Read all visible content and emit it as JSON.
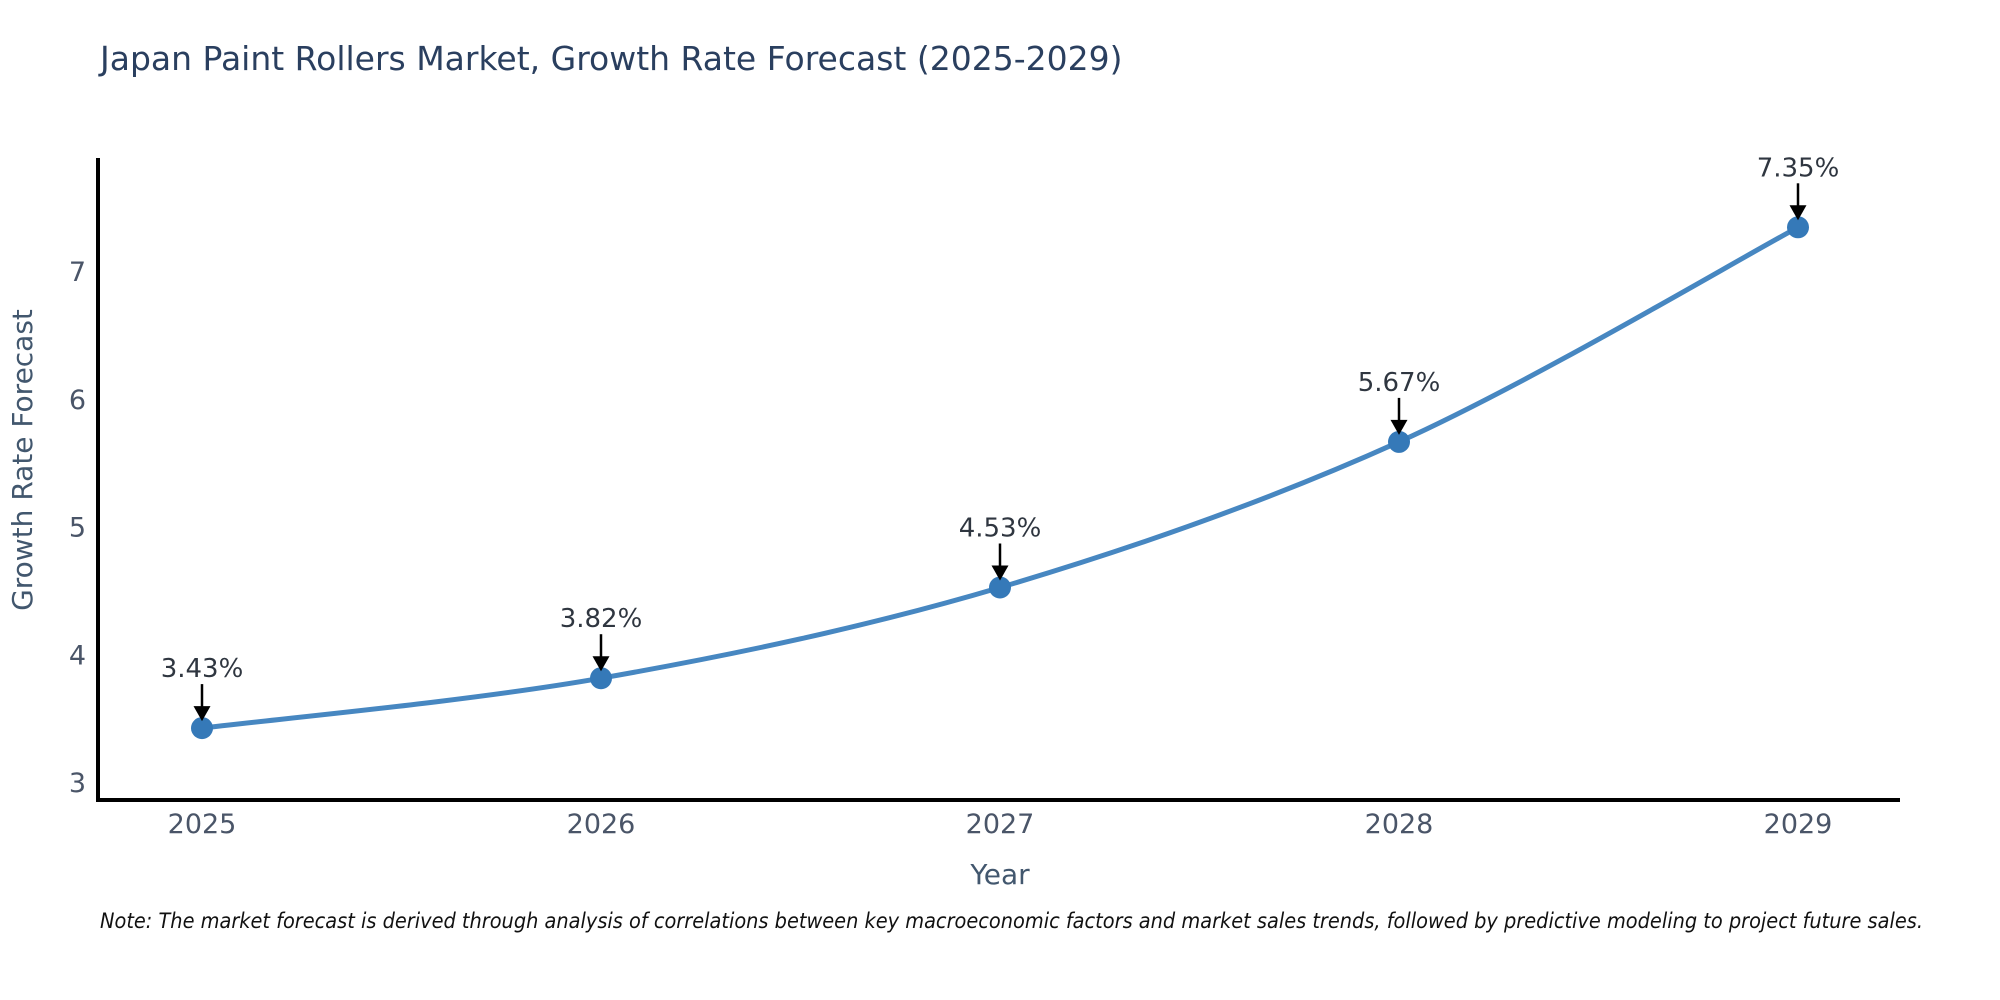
{
  "header": {
    "title": "Japan Paint Rollers Market, Growth Rate Forecast (2025-2029)"
  },
  "chart_data": {
    "type": "line",
    "title": "Japan Paint Rollers Market, Growth Rate Forecast (2025-2029)",
    "x": [
      2025,
      2026,
      2027,
      2028,
      2029
    ],
    "categories": [
      "2025",
      "2026",
      "2027",
      "2028",
      "2029"
    ],
    "series": [
      {
        "name": "Growth Rate Forecast",
        "values": [
          3.43,
          3.82,
          4.53,
          5.67,
          7.35
        ],
        "point_labels": [
          "3.43%",
          "3.82%",
          "4.53%",
          "5.67%",
          "7.35%"
        ]
      }
    ],
    "xlabel": "Year",
    "ylabel": "Growth Rate Forecast",
    "y_ticks": [
      3,
      4,
      5,
      6,
      7
    ],
    "ylim": [
      2.87,
      7.9
    ],
    "grid": false,
    "legend": false,
    "annotations_have_arrows": true,
    "colors": {
      "line": "#4787c1",
      "marker": "#3579b8",
      "axis_spine": "#000000",
      "arrow": "#000000",
      "title_text": "#2a3f5f",
      "tick_text": "#4a5568",
      "axis_title_text": "#42576e",
      "annotation_text": "#2f3640",
      "background": "#ffffff"
    }
  },
  "footnote": {
    "text": "Note: The market forecast is derived through analysis of correlations between key macroeconomic factors and market sales trends, followed by predictive modeling to project future sales."
  }
}
